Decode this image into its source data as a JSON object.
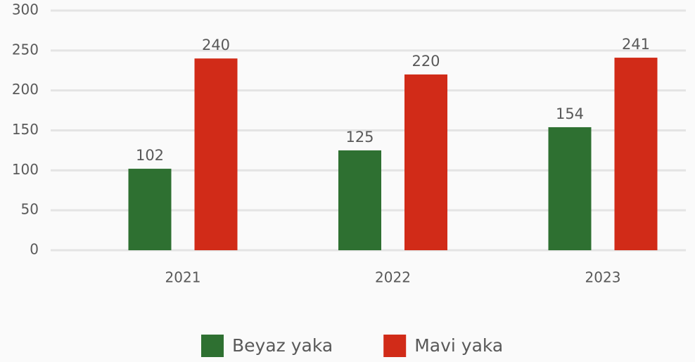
{
  "chart_data": {
    "type": "bar",
    "categories": [
      "2021",
      "2022",
      "2023"
    ],
    "series": [
      {
        "name": "Beyaz yaka",
        "color": "#2e7031",
        "values": [
          102,
          125,
          154
        ]
      },
      {
        "name": "Mavi yaka",
        "color": "#d12b18",
        "values": [
          240,
          220,
          241
        ]
      }
    ],
    "ylim": [
      0,
      300
    ],
    "yticks": [
      0,
      50,
      100,
      150,
      200,
      250,
      300
    ],
    "grid": true,
    "legend": "bottom"
  }
}
